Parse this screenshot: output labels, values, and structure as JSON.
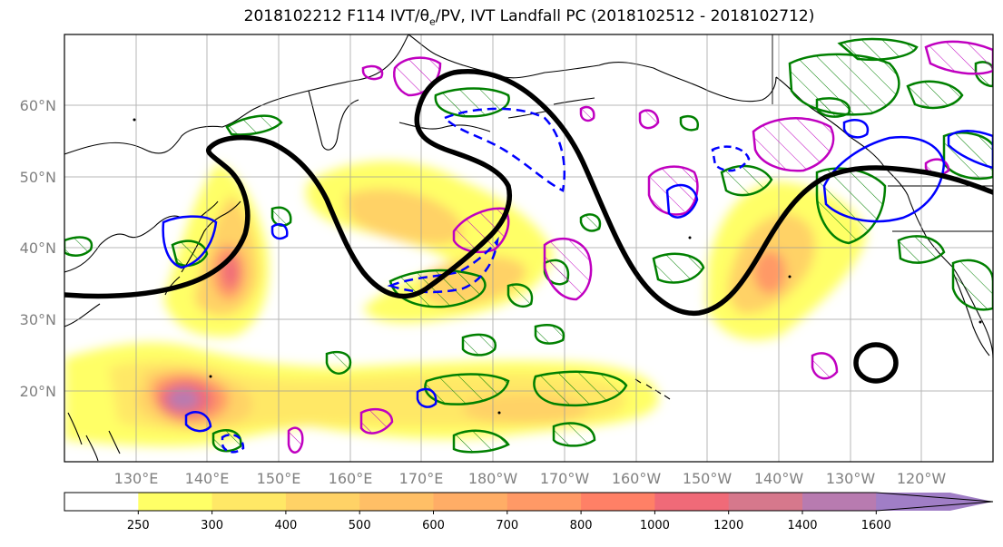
{
  "title": "2018102212 F114 IVT/θe/PV, IVT Landfall PC (2018102512 - 2018102712)",
  "title_parts": {
    "prefix": "2018102212 F114 IVT/",
    "theta": "θ",
    "theta_sub": "e",
    "suffix": "/PV, IVT Landfall PC (2018102512 - 2018102712)"
  },
  "map": {
    "latitude_labels": [
      "60°N",
      "50°N",
      "40°N",
      "30°N",
      "20°N"
    ],
    "longitude_labels": [
      "130°E",
      "140°E",
      "150°E",
      "160°E",
      "170°E",
      "180°W",
      "170°W",
      "160°W",
      "150°W",
      "140°W",
      "130°W",
      "120°W"
    ],
    "extent": {
      "lon_min": 120,
      "lon_max": 250,
      "lat_min": 10,
      "lat_max": 70
    },
    "gridlines": true,
    "colors": {
      "pv_contour": "#000000",
      "theta_e_contour": "#008000",
      "ivt_pc_contour": "#0000ff",
      "pv_hatch": "#c000c0",
      "coastline": "#000000"
    }
  },
  "colorbar": {
    "levels": [
      "250",
      "300",
      "400",
      "500",
      "600",
      "700",
      "800",
      "1000",
      "1200",
      "1400",
      "1600"
    ],
    "colors": [
      "#ffffff",
      "#ffff66",
      "#ffe866",
      "#ffd266",
      "#ffbf66",
      "#ffad66",
      "#ff9966",
      "#ff8066",
      "#f06a78",
      "#d6788c",
      "#b87bb0",
      "#a07ec6"
    ],
    "extend": "max"
  }
}
